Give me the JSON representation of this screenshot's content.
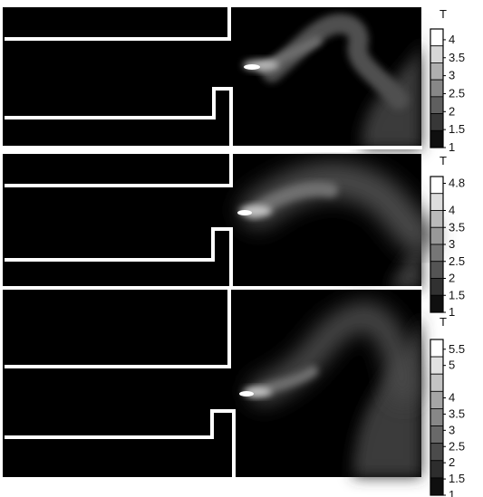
{
  "figure": {
    "colors": {
      "background": "#000000",
      "walls": "#ffffff",
      "frame": "#ffffff"
    }
  },
  "chart_data": [
    {
      "type": "heatmap",
      "variable": "T",
      "legend_title": "T",
      "legend_placement": "right",
      "colormap": "grayscale",
      "levels": [
        "1",
        "1.5",
        "2",
        "2.5",
        "3",
        "3.5",
        "4"
      ],
      "range": [
        1,
        4.3
      ]
    },
    {
      "type": "heatmap",
      "variable": "T",
      "legend_title": "T",
      "legend_placement": "right",
      "colormap": "grayscale",
      "levels": [
        "1",
        "1.5",
        "2",
        "2.5",
        "3",
        "3.5",
        "4",
        "4.8"
      ],
      "range": [
        1,
        5.0
      ]
    },
    {
      "type": "heatmap",
      "variable": "T",
      "legend_title": "T",
      "legend_placement": "right",
      "colormap": "grayscale",
      "levels": [
        "1",
        "1.5",
        "2",
        "2.5",
        "3",
        "3.5",
        "4",
        "5",
        "5.5"
      ],
      "range": [
        1,
        5.8
      ]
    }
  ]
}
